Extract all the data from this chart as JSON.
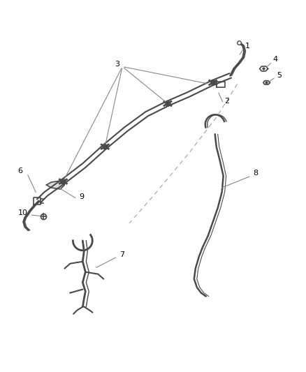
{
  "background_color": "#ffffff",
  "fig_width": 4.38,
  "fig_height": 5.33,
  "dpi": 100,
  "line_color": "#4a4a4a",
  "label_fontsize": 8,
  "arrow_color": "#888888",
  "label_color": "#000000"
}
